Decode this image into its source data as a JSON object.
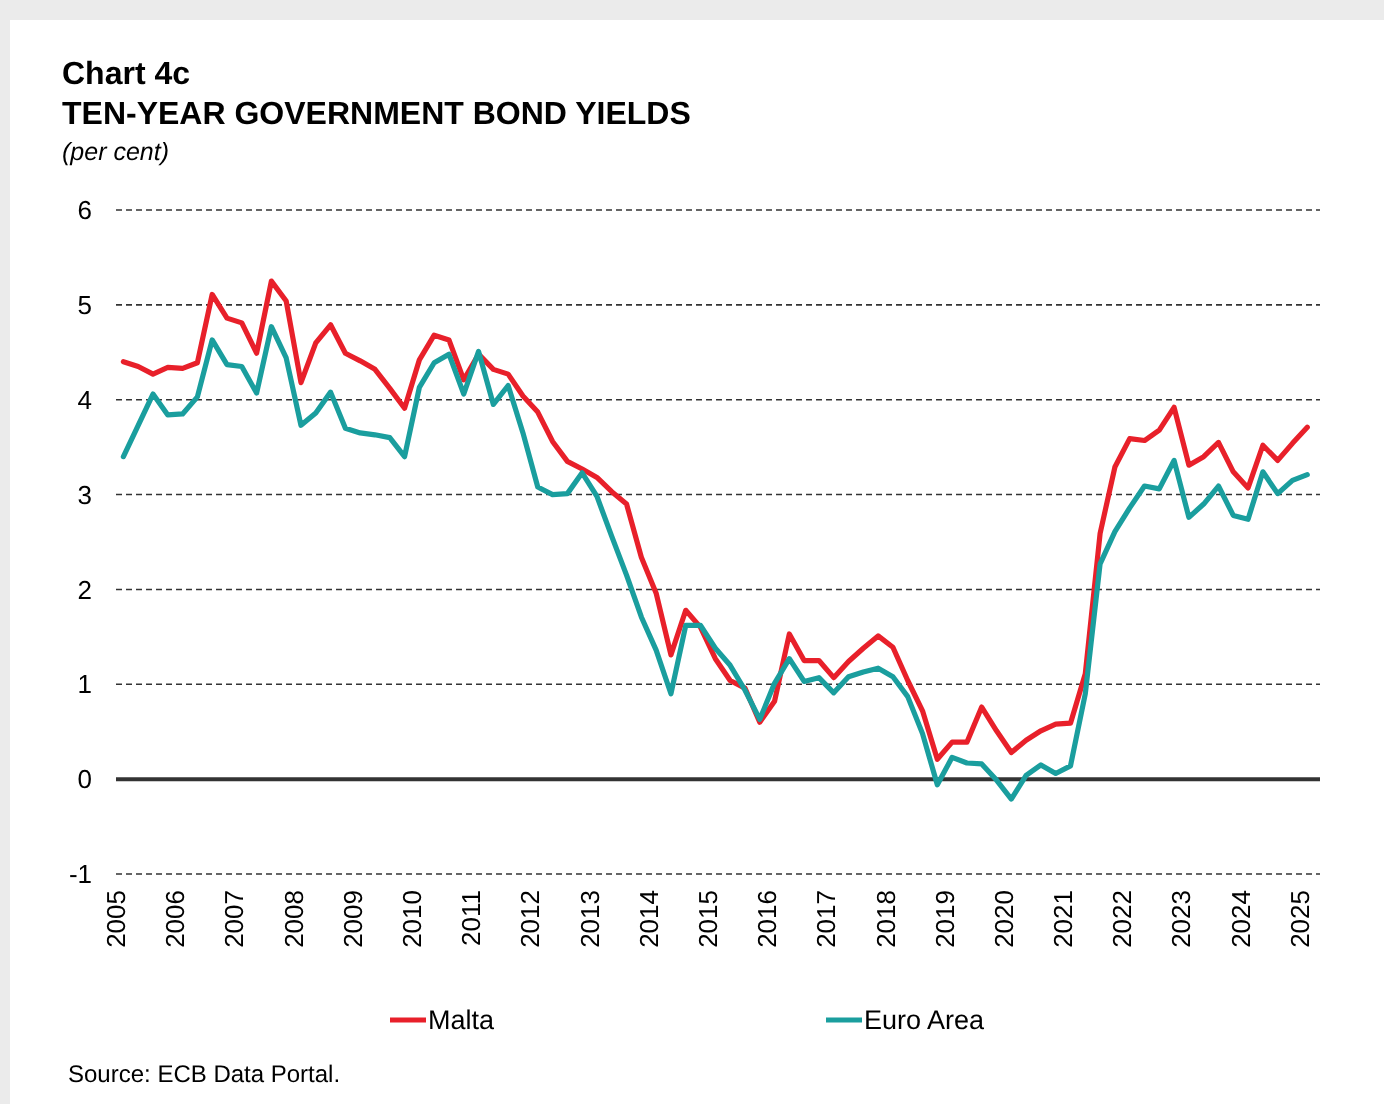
{
  "chart_data": {
    "type": "line",
    "title": "Chart 4c",
    "subtitle": "TEN-YEAR GOVERNMENT BOND YIELDS",
    "ylabel": "(per cent)",
    "annotations": [
      "Source: ECB Data Portal."
    ],
    "x": [
      2005.125,
      2005.375,
      2005.625,
      2005.875,
      2006.125,
      2006.375,
      2006.625,
      2006.875,
      2007.125,
      2007.375,
      2007.625,
      2007.875,
      2008.125,
      2008.375,
      2008.625,
      2008.875,
      2009.125,
      2009.375,
      2009.625,
      2009.875,
      2010.125,
      2010.375,
      2010.625,
      2010.875,
      2011.125,
      2011.375,
      2011.625,
      2011.875,
      2012.125,
      2012.375,
      2012.625,
      2012.875,
      2013.125,
      2013.375,
      2013.625,
      2013.875,
      2014.125,
      2014.375,
      2014.625,
      2014.875,
      2015.125,
      2015.375,
      2015.625,
      2015.875,
      2016.125,
      2016.375,
      2016.625,
      2016.875,
      2017.125,
      2017.375,
      2017.625,
      2017.875,
      2018.125,
      2018.375,
      2018.625,
      2018.875,
      2019.125,
      2019.375,
      2019.625,
      2019.875,
      2020.125,
      2020.375,
      2020.625,
      2020.875,
      2021.125,
      2021.375,
      2021.625,
      2021.875,
      2022.125,
      2022.375,
      2022.625,
      2022.875,
      2023.125,
      2023.375,
      2023.625,
      2023.875,
      2024.125,
      2024.375,
      2024.625,
      2024.875,
      2025.125
    ],
    "series": [
      {
        "name": "Malta",
        "color": "#e8202a",
        "values": [
          4.4,
          4.35,
          4.27,
          4.34,
          4.33,
          4.39,
          5.11,
          4.86,
          4.81,
          4.49,
          5.25,
          5.04,
          4.18,
          4.6,
          4.79,
          4.49,
          4.41,
          4.32,
          4.12,
          3.91,
          4.42,
          4.68,
          4.63,
          4.21,
          4.48,
          4.32,
          4.27,
          4.04,
          3.87,
          3.56,
          3.35,
          3.27,
          3.18,
          3.03,
          2.9,
          2.34,
          1.96,
          1.31,
          1.78,
          1.6,
          1.27,
          1.04,
          0.96,
          0.6,
          0.82,
          1.53,
          1.25,
          1.25,
          1.07,
          1.24,
          1.38,
          1.51,
          1.39,
          1.04,
          0.72,
          0.21,
          0.39,
          0.39,
          0.76,
          0.51,
          0.28,
          0.41,
          0.51,
          0.58,
          0.59,
          1.11,
          2.59,
          3.29,
          3.59,
          3.57,
          3.68,
          3.92,
          3.31,
          3.4,
          3.55,
          3.24,
          3.07,
          3.52,
          3.36,
          3.54,
          3.71
        ]
      },
      {
        "name": "Euro Area",
        "color": "#1a9e9e",
        "values": [
          3.4,
          3.73,
          4.06,
          3.84,
          3.85,
          4.03,
          4.63,
          4.37,
          4.35,
          4.07,
          4.77,
          4.44,
          3.73,
          3.86,
          4.08,
          3.7,
          3.65,
          3.63,
          3.6,
          3.4,
          4.13,
          4.39,
          4.48,
          4.06,
          4.51,
          3.95,
          4.15,
          3.65,
          3.08,
          3.0,
          3.01,
          3.23,
          2.98,
          2.56,
          2.15,
          1.71,
          1.36,
          0.9,
          1.62,
          1.62,
          1.38,
          1.2,
          0.94,
          0.63,
          1.01,
          1.27,
          1.03,
          1.07,
          0.91,
          1.08,
          1.13,
          1.17,
          1.08,
          0.87,
          0.48,
          -0.06,
          0.23,
          0.17,
          0.16,
          -0.01,
          -0.21,
          0.04,
          0.15,
          0.06,
          0.14,
          0.9,
          2.27,
          2.61,
          2.86,
          3.09,
          3.06,
          3.36,
          2.76,
          2.9,
          3.09,
          2.78,
          2.74,
          3.24,
          3.01,
          3.15,
          3.21
        ]
      }
    ],
    "xlim": [
      2005,
      2025.34
    ],
    "xticks": [
      2005,
      2006,
      2007,
      2008,
      2009,
      2010,
      2011,
      2012,
      2013,
      2014,
      2015,
      2016,
      2017,
      2018,
      2019,
      2020,
      2021,
      2022,
      2023,
      2024,
      2025
    ],
    "ylim": [
      -1,
      6
    ],
    "yticks": [
      -1,
      0,
      1,
      2,
      3,
      4,
      5,
      6
    ],
    "grid": "y",
    "legend": "bottom",
    "marker": "none",
    "line_style": "solid"
  }
}
